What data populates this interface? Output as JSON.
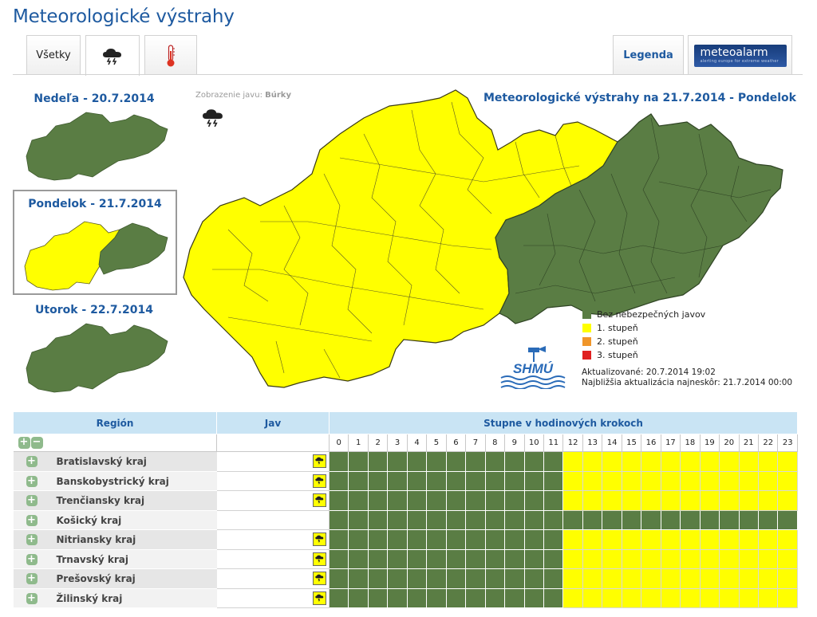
{
  "page": {
    "title": "Meteorologické výstrahy"
  },
  "tabs": {
    "all_label": "Všetky",
    "storm_icon": "storm-cloud-icon",
    "temperature_icon": "thermometer-icon",
    "legend_label": "Legenda",
    "meteoalarm_text": "meteoalarm",
    "meteoalarm_sub": "alerting europe for extreme weather"
  },
  "days": [
    {
      "title": "Nedeľa - 20.7.2014"
    },
    {
      "title": "Pondelok - 21.7.2014"
    },
    {
      "title": "Utorok - 22.7.2014"
    }
  ],
  "map": {
    "phenomenon_prefix": "Zobrazenie javu:",
    "phenomenon_value": "Búrky",
    "title": "Meteorologické výstrahy na 21.7.2014 - Pondelok",
    "legend": [
      {
        "label": "Bez nebezpečných javov",
        "color": "#5a7d44"
      },
      {
        "label": "1. stupeň",
        "color": "#ffff00"
      },
      {
        "label": "2. stupeň",
        "color": "#f0962a"
      },
      {
        "label": "3. stupeň",
        "color": "#e02020"
      }
    ],
    "updated": "Aktualizované: 20.7.2014 19:02",
    "next_update": "Najbližšia aktualizácia najneskôr: 21.7.2014 00:00",
    "logo_text": "SHMÚ"
  },
  "table": {
    "col_region": "Región",
    "col_phenomenon": "Jav",
    "col_hours": "Stupne v hodinových krokoch",
    "hours": [
      "0",
      "1",
      "2",
      "3",
      "4",
      "5",
      "6",
      "7",
      "8",
      "9",
      "10",
      "11",
      "12",
      "13",
      "14",
      "15",
      "16",
      "17",
      "18",
      "19",
      "20",
      "21",
      "22",
      "23"
    ],
    "colors": {
      "none": "#5a7d44",
      "level1": "#ffff00"
    },
    "rows": [
      {
        "name": "Bratislavský kraj",
        "has_storm": true,
        "levels": [
          0,
          0,
          0,
          0,
          0,
          0,
          0,
          0,
          0,
          0,
          0,
          0,
          1,
          1,
          1,
          1,
          1,
          1,
          1,
          1,
          1,
          1,
          1,
          1
        ]
      },
      {
        "name": "Banskobystrický kraj",
        "has_storm": true,
        "levels": [
          0,
          0,
          0,
          0,
          0,
          0,
          0,
          0,
          0,
          0,
          0,
          0,
          1,
          1,
          1,
          1,
          1,
          1,
          1,
          1,
          1,
          1,
          1,
          1
        ]
      },
      {
        "name": "Trenčiansky kraj",
        "has_storm": true,
        "levels": [
          0,
          0,
          0,
          0,
          0,
          0,
          0,
          0,
          0,
          0,
          0,
          0,
          1,
          1,
          1,
          1,
          1,
          1,
          1,
          1,
          1,
          1,
          1,
          1
        ]
      },
      {
        "name": "Košický kraj",
        "has_storm": false,
        "levels": [
          0,
          0,
          0,
          0,
          0,
          0,
          0,
          0,
          0,
          0,
          0,
          0,
          0,
          0,
          0,
          0,
          0,
          0,
          0,
          0,
          0,
          0,
          0,
          0
        ]
      },
      {
        "name": "Nitriansky kraj",
        "has_storm": true,
        "levels": [
          0,
          0,
          0,
          0,
          0,
          0,
          0,
          0,
          0,
          0,
          0,
          0,
          1,
          1,
          1,
          1,
          1,
          1,
          1,
          1,
          1,
          1,
          1,
          1
        ]
      },
      {
        "name": "Trnavský kraj",
        "has_storm": true,
        "levels": [
          0,
          0,
          0,
          0,
          0,
          0,
          0,
          0,
          0,
          0,
          0,
          0,
          1,
          1,
          1,
          1,
          1,
          1,
          1,
          1,
          1,
          1,
          1,
          1
        ]
      },
      {
        "name": "Prešovský kraj",
        "has_storm": true,
        "levels": [
          0,
          0,
          0,
          0,
          0,
          0,
          0,
          0,
          0,
          0,
          0,
          0,
          1,
          1,
          1,
          1,
          1,
          1,
          1,
          1,
          1,
          1,
          1,
          1
        ]
      },
      {
        "name": "Žilinský kraj",
        "has_storm": true,
        "levels": [
          0,
          0,
          0,
          0,
          0,
          0,
          0,
          0,
          0,
          0,
          0,
          0,
          1,
          1,
          1,
          1,
          1,
          1,
          1,
          1,
          1,
          1,
          1,
          1
        ]
      }
    ]
  }
}
